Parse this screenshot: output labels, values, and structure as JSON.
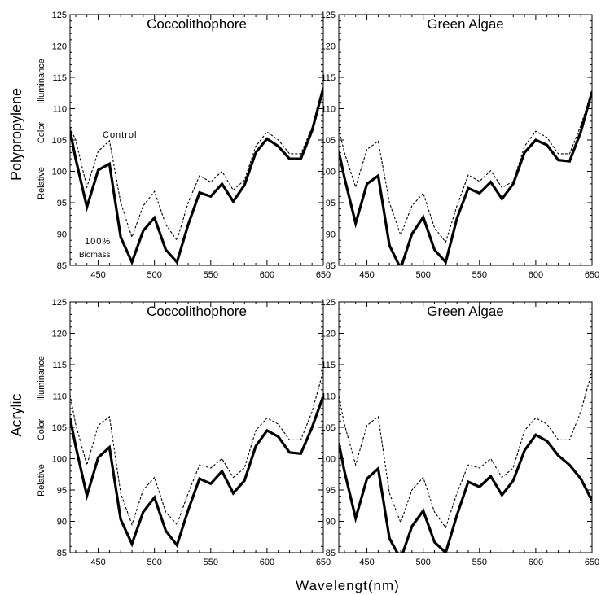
{
  "figure": {
    "row_labels": [
      "Polypropylene",
      "Acrylic"
    ],
    "x_axis_title": "Wavelengt(nm)",
    "ylabel_parts": [
      "Relative",
      "Color",
      "Illuminance"
    ]
  },
  "chart_data": [
    {
      "type": "line",
      "title": "Coccolithophore",
      "row": "Polypropylene",
      "xlim": [
        425,
        650
      ],
      "ylim": [
        85,
        125
      ],
      "xticks": [
        450,
        500,
        550,
        600,
        650
      ],
      "yticks": [
        85,
        90,
        95,
        100,
        105,
        110,
        115,
        120,
        125
      ],
      "annotations": [
        "Control",
        "100%",
        "Biomass"
      ],
      "series": [
        {
          "name": "Control",
          "style": "dashed",
          "x": [
            425,
            430,
            440,
            450,
            460,
            470,
            480,
            490,
            500,
            510,
            520,
            530,
            540,
            550,
            560,
            570,
            580,
            590,
            600,
            610,
            620,
            630,
            640,
            650
          ],
          "y": [
            107,
            105,
            97.5,
            103.2,
            104.9,
            95,
            89.5,
            94.5,
            96.8,
            91.5,
            89,
            95,
            99.3,
            98.3,
            100,
            97,
            98.6,
            104,
            106.3,
            105,
            102.8,
            102.8,
            107,
            113.7
          ]
        },
        {
          "name": "100% Biomass",
          "style": "solid",
          "x": [
            425,
            430,
            440,
            450,
            460,
            470,
            480,
            490,
            500,
            510,
            520,
            530,
            540,
            550,
            560,
            570,
            580,
            590,
            600,
            610,
            620,
            630,
            640,
            650
          ],
          "y": [
            106.5,
            102,
            94.3,
            100.2,
            101.2,
            89.5,
            85.5,
            90.5,
            92.6,
            87.5,
            85.5,
            91.5,
            96.6,
            96,
            98,
            95.2,
            97.8,
            103,
            105.2,
            104,
            102,
            102,
            106.5,
            113.3
          ]
        }
      ]
    },
    {
      "type": "line",
      "title": "Green  Algae",
      "row": "Polypropylene",
      "xlim": [
        425,
        650
      ],
      "ylim": [
        85,
        125
      ],
      "xticks": [
        450,
        500,
        550,
        600,
        650
      ],
      "yticks": [
        85,
        90,
        95,
        100,
        105,
        110,
        115,
        120,
        125
      ],
      "series": [
        {
          "name": "Control",
          "style": "dashed",
          "x": [
            425,
            430,
            440,
            450,
            460,
            470,
            480,
            490,
            500,
            510,
            520,
            530,
            540,
            550,
            560,
            570,
            580,
            590,
            600,
            610,
            620,
            630,
            640,
            650
          ],
          "y": [
            106.8,
            103,
            97.5,
            103.5,
            104.8,
            95,
            89.8,
            94.5,
            96.5,
            91,
            88.7,
            94.5,
            99.4,
            98.4,
            100.1,
            97.4,
            98.4,
            104,
            106.4,
            105.4,
            102.8,
            102.8,
            107.3,
            112.9
          ]
        },
        {
          "name": "100% Biomass",
          "style": "solid",
          "x": [
            425,
            430,
            440,
            450,
            460,
            470,
            480,
            490,
            500,
            510,
            520,
            530,
            540,
            550,
            560,
            570,
            580,
            590,
            600,
            610,
            620,
            630,
            640,
            650
          ],
          "y": [
            103.2,
            99,
            91.7,
            98,
            99.3,
            88.2,
            84.5,
            90,
            92.7,
            87.5,
            85.5,
            92.5,
            97.3,
            96.5,
            98.3,
            95.6,
            98,
            103,
            105,
            104.2,
            101.8,
            101.6,
            106.3,
            112.7
          ]
        }
      ]
    },
    {
      "type": "line",
      "title": "Coccolithophore",
      "row": "Acrylic",
      "xlim": [
        425,
        650
      ],
      "ylim": [
        85,
        125
      ],
      "xticks": [
        450,
        500,
        550,
        600,
        650
      ],
      "yticks": [
        85,
        90,
        95,
        100,
        105,
        110,
        115,
        120,
        125
      ],
      "series": [
        {
          "name": "Control",
          "style": "dashed",
          "x": [
            425,
            430,
            440,
            450,
            460,
            470,
            480,
            490,
            500,
            510,
            520,
            530,
            540,
            550,
            560,
            570,
            580,
            590,
            600,
            610,
            620,
            630,
            640,
            650
          ],
          "y": [
            110.2,
            105.5,
            99,
            105.3,
            106.7,
            94.5,
            89.5,
            95,
            97,
            91.5,
            89.5,
            94.5,
            99,
            98.5,
            100,
            97,
            98.5,
            104.5,
            106.5,
            105.5,
            103,
            103,
            107.5,
            114
          ]
        },
        {
          "name": "100% Biomass",
          "style": "solid",
          "x": [
            425,
            430,
            440,
            450,
            460,
            470,
            480,
            490,
            500,
            510,
            520,
            530,
            540,
            550,
            560,
            570,
            580,
            590,
            600,
            610,
            620,
            630,
            640,
            650
          ],
          "y": [
            106.5,
            102,
            94.1,
            100.2,
            101.8,
            90.3,
            86.4,
            91.5,
            93.8,
            88.5,
            86.2,
            91.8,
            96.8,
            96,
            98,
            94.5,
            96.5,
            102,
            104.5,
            103.5,
            101,
            100.8,
            105,
            110
          ]
        }
      ]
    },
    {
      "type": "line",
      "title": "Green  Algae",
      "row": "Acrylic",
      "xlim": [
        425,
        650
      ],
      "ylim": [
        85,
        125
      ],
      "xticks": [
        450,
        500,
        550,
        600,
        650
      ],
      "yticks": [
        85,
        90,
        95,
        100,
        105,
        110,
        115,
        120,
        125
      ],
      "series": [
        {
          "name": "Control",
          "style": "dashed",
          "x": [
            425,
            430,
            440,
            450,
            460,
            470,
            480,
            490,
            500,
            510,
            520,
            530,
            540,
            550,
            560,
            570,
            580,
            590,
            600,
            610,
            620,
            630,
            640,
            650
          ],
          "y": [
            110,
            105.5,
            99,
            105.3,
            106.7,
            94.5,
            89.8,
            95,
            97,
            91.5,
            89,
            94.5,
            99,
            98.5,
            100,
            97,
            98.5,
            104.5,
            106.5,
            105.5,
            103,
            103,
            107.5,
            114
          ]
        },
        {
          "name": "100% Biomass",
          "style": "solid",
          "x": [
            425,
            430,
            440,
            450,
            460,
            470,
            480,
            490,
            500,
            510,
            520,
            530,
            540,
            550,
            560,
            570,
            580,
            590,
            600,
            610,
            620,
            630,
            640,
            650
          ],
          "y": [
            102.5,
            98,
            90.5,
            96.8,
            98.4,
            87.3,
            84,
            89.2,
            91.7,
            86.7,
            85,
            91,
            96.3,
            95.5,
            97.2,
            94.2,
            96.5,
            101.3,
            103.8,
            102.8,
            100.5,
            99,
            96.8,
            93.3
          ]
        }
      ]
    }
  ]
}
